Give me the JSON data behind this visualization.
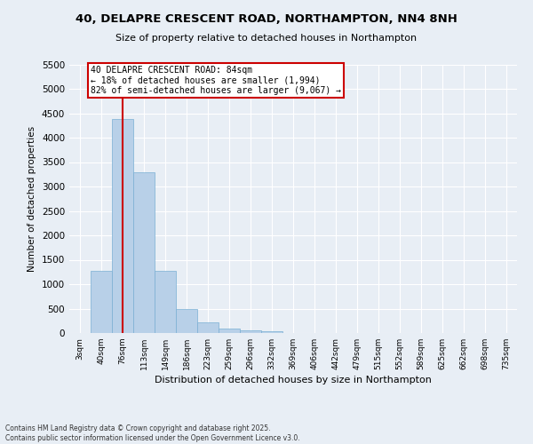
{
  "title": "40, DELAPRE CRESCENT ROAD, NORTHAMPTON, NN4 8NH",
  "subtitle": "Size of property relative to detached houses in Northampton",
  "xlabel": "Distribution of detached houses by size in Northampton",
  "ylabel": "Number of detached properties",
  "bar_color": "#b8d0e8",
  "bar_edge_color": "#7aafd4",
  "background_color": "#e8eef5",
  "grid_color": "#ffffff",
  "categories": [
    "3sqm",
    "40sqm",
    "76sqm",
    "113sqm",
    "149sqm",
    "186sqm",
    "223sqm",
    "259sqm",
    "296sqm",
    "332sqm",
    "369sqm",
    "406sqm",
    "442sqm",
    "479sqm",
    "515sqm",
    "552sqm",
    "589sqm",
    "625sqm",
    "662sqm",
    "698sqm",
    "735sqm"
  ],
  "values": [
    0,
    1270,
    4380,
    3300,
    1280,
    500,
    215,
    90,
    55,
    40,
    0,
    0,
    0,
    0,
    0,
    0,
    0,
    0,
    0,
    0,
    0
  ],
  "ylim": [
    0,
    5500
  ],
  "yticks": [
    0,
    500,
    1000,
    1500,
    2000,
    2500,
    3000,
    3500,
    4000,
    4500,
    5000,
    5500
  ],
  "vline_x_index": 2,
  "vline_color": "#cc0000",
  "annotation_title": "40 DELAPRE CRESCENT ROAD: 84sqm",
  "annotation_line1": "← 18% of detached houses are smaller (1,994)",
  "annotation_line2": "82% of semi-detached houses are larger (9,067) →",
  "annotation_box_color": "#ffffff",
  "annotation_box_edge": "#cc0000",
  "footer1": "Contains HM Land Registry data © Crown copyright and database right 2025.",
  "footer2": "Contains public sector information licensed under the Open Government Licence v3.0."
}
